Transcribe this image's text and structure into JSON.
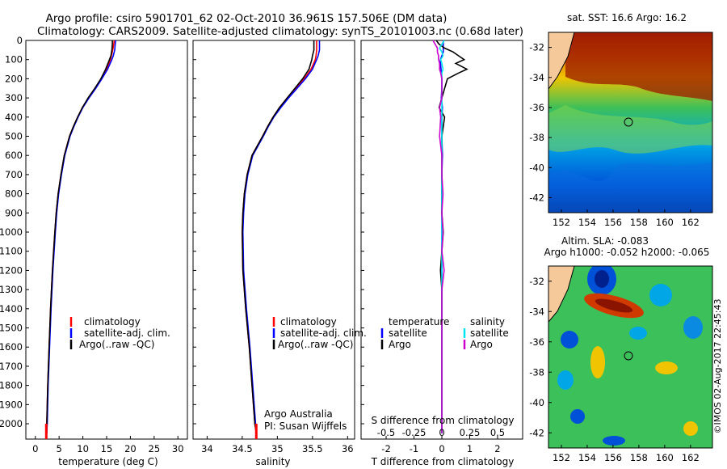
{
  "title_line1": "Argo profile: csiro 5901701_62 02-Oct-2010 36.961S 157.506E (DM data)",
  "title_line2": "Climatology: CARS2009. Satellite-adjusted climatology: synTS_20101003.nc (0.68d later)",
  "depth_ticks": [
    "0",
    "100",
    "200",
    "300",
    "400",
    "500",
    "600",
    "700",
    "800",
    "900",
    "1000",
    "1100",
    "1200",
    "1300",
    "1400",
    "1500",
    "1600",
    "1700",
    "1800",
    "1900",
    "2000"
  ],
  "legend_profile": [
    "climatology",
    "satellite-adj. clim.",
    "Argo(..raw -QC)"
  ],
  "legend_diff": {
    "temperature_header": "temperature",
    "salinity_header": "salinity",
    "t_satellite": "satellite",
    "t_argo": "Argo",
    "s_satellite": "satellite",
    "s_argo": "Argo"
  },
  "credit_line1": "Argo Australia",
  "credit_line2": "PI: Susan Wijffels",
  "map_sst_title": "sat. SST: 16.6 Argo: 16.2",
  "map_sla_title1": "Altim. SLA: -0.083",
  "map_sla_title2": "Argo h1000: -0.052 h2000: -0.065",
  "map_lat_ticks": [
    "-32",
    "-34",
    "-36",
    "-38",
    "-40",
    "-42"
  ],
  "map_lon_ticks": [
    "152",
    "154",
    "156",
    "158",
    "160",
    "162"
  ],
  "watermark": "©IMOS 02-Aug-2017 22:45:43",
  "colors": {
    "climatology": "#ff0000",
    "satellite": "#0000ff",
    "argo": "#000000",
    "t_sat": "#0000ff",
    "s_sat": "#00e5ee",
    "s_argo": "#cc00cc",
    "land": "#f5c99a"
  },
  "chart_data": [
    {
      "type": "line",
      "title": "",
      "xlabel": "temperature (deg C)",
      "ylabel": "",
      "xlim": [
        -2,
        32
      ],
      "ylim": [
        2080,
        0
      ],
      "xticks": [
        "0",
        "5",
        "10",
        "15",
        "20",
        "25",
        "30"
      ],
      "depth": [
        0,
        20,
        50,
        80,
        100,
        150,
        200,
        250,
        300,
        350,
        400,
        450,
        500,
        600,
        700,
        800,
        900,
        1000,
        1200,
        1400,
        1600,
        1800,
        2000,
        2050
      ],
      "series": [
        {
          "name": "climatology",
          "values": [
            16.6,
            16.5,
            16.3,
            16.0,
            15.8,
            15.0,
            13.9,
            12.6,
            11.2,
            9.9,
            8.9,
            8.0,
            7.2,
            6.1,
            5.4,
            4.8,
            4.4,
            4.1,
            3.6,
            3.2,
            2.9,
            2.6,
            2.4,
            2.3
          ]
        },
        {
          "name": "satellite-adj. clim.",
          "values": [
            16.9,
            16.8,
            16.7,
            16.4,
            16.1,
            15.2,
            14.0,
            12.7,
            11.3,
            10.0,
            9.0,
            8.1,
            7.3,
            6.2,
            5.5,
            4.9,
            4.5,
            4.2,
            3.7,
            3.3,
            3.0,
            2.7,
            2.5,
            2.4
          ]
        },
        {
          "name": "Argo(..raw -QC)",
          "values": [
            16.2,
            16.2,
            16.1,
            15.9,
            15.6,
            14.8,
            13.8,
            12.5,
            11.1,
            9.9,
            8.9,
            8.0,
            7.2,
            6.1,
            5.4,
            4.8,
            4.4,
            4.1,
            3.6,
            3.2,
            2.9,
            2.6,
            2.4,
            2.4
          ]
        }
      ]
    },
    {
      "type": "line",
      "title": "",
      "xlabel": "salinity",
      "ylabel": "",
      "xlim": [
        33.8,
        36.1
      ],
      "ylim": [
        2080,
        0
      ],
      "xticks": [
        "34",
        "34.5",
        "35",
        "35.5",
        "36"
      ],
      "depth": [
        0,
        20,
        50,
        80,
        100,
        150,
        200,
        250,
        300,
        350,
        400,
        450,
        500,
        600,
        700,
        800,
        900,
        1000,
        1200,
        1400,
        1600,
        1800,
        2000,
        2050
      ],
      "series": [
        {
          "name": "climatology",
          "values": [
            35.56,
            35.56,
            35.56,
            35.55,
            35.54,
            35.48,
            35.38,
            35.26,
            35.14,
            35.03,
            34.94,
            34.86,
            34.79,
            34.64,
            34.57,
            34.53,
            34.51,
            34.5,
            34.51,
            34.55,
            34.6,
            34.64,
            34.68,
            34.7
          ]
        },
        {
          "name": "satellite-adj. clim.",
          "values": [
            35.6,
            35.6,
            35.6,
            35.58,
            35.56,
            35.5,
            35.4,
            35.28,
            35.16,
            35.05,
            34.95,
            34.87,
            34.8,
            34.65,
            34.58,
            34.54,
            34.52,
            34.51,
            34.52,
            34.56,
            34.61,
            34.65,
            34.69,
            34.7
          ]
        },
        {
          "name": "Argo(..raw -QC)",
          "values": [
            35.52,
            35.52,
            35.52,
            35.5,
            35.49,
            35.45,
            35.36,
            35.25,
            35.14,
            35.03,
            34.94,
            34.86,
            34.79,
            34.64,
            34.57,
            34.53,
            34.51,
            34.5,
            34.51,
            34.55,
            34.6,
            34.64,
            34.68,
            34.7
          ]
        }
      ]
    },
    {
      "type": "line",
      "title": "",
      "xlabel": "T difference from climatology",
      "ylabel": "",
      "xlim": [
        -2.9,
        2.9
      ],
      "ylim": [
        2080,
        0
      ],
      "xticks": [
        "-2",
        "-1",
        "0",
        "1",
        "2"
      ],
      "s_axis_label": "S difference from climatology",
      "s_ticks": [
        "-0.5",
        "-0.25",
        "0",
        "0.25",
        "0.5"
      ],
      "depth": [
        0,
        20,
        40,
        60,
        80,
        100,
        120,
        150,
        170,
        200,
        250,
        300,
        350,
        400,
        500,
        600,
        700,
        800,
        900,
        1000,
        1100,
        1200,
        1300,
        1400,
        1500,
        1600,
        1800,
        2000,
        2050
      ],
      "series": [
        {
          "name": "temperature satellite",
          "values": [
            0.05,
            0.05,
            0.05,
            0.05,
            0.0,
            -0.05,
            -0.05,
            -0.03,
            -0.02,
            0.0,
            0.0,
            -0.02,
            0.02,
            0.0,
            0.0,
            0.02,
            0.0,
            0.0,
            0.0,
            0.0,
            0.0,
            0.0,
            0.0,
            0.0,
            0.0,
            0.0,
            0.0,
            0.0,
            0.0
          ]
        },
        {
          "name": "temperature Argo",
          "values": [
            -0.2,
            -0.1,
            0.1,
            0.4,
            0.6,
            0.8,
            0.5,
            0.9,
            0.6,
            0.2,
            0.1,
            0.0,
            -0.1,
            0.1,
            0.0,
            0.0,
            0.0,
            0.0,
            0.0,
            0.05,
            0.0,
            -0.05,
            0.0,
            0.0,
            0.0,
            0.0,
            0.0,
            0.0,
            0.0
          ]
        },
        {
          "name": "salinity satellite",
          "values": [
            0.02,
            0.0,
            -0.02,
            0.0,
            0.01,
            -0.01,
            0.0,
            0.01,
            0.0,
            0.0,
            0.0,
            0.0,
            0.0,
            0.0,
            0.0,
            0.0,
            0.0,
            0.0,
            0.0,
            0.0,
            0.0,
            0.0,
            0.0,
            0.0,
            0.0,
            0.0,
            0.0,
            0.0,
            0.0
          ]
        },
        {
          "name": "salinity Argo",
          "values": [
            -0.08,
            -0.06,
            -0.04,
            -0.04,
            -0.03,
            -0.03,
            -0.02,
            -0.02,
            -0.01,
            0.0,
            0.0,
            0.0,
            -0.02,
            -0.01,
            -0.02,
            0.0,
            0.0,
            0.01,
            0.0,
            0.01,
            0.0,
            0.02,
            0.0,
            0.0,
            0.0,
            0.0,
            0.0,
            0.0,
            0.0
          ]
        }
      ]
    }
  ]
}
